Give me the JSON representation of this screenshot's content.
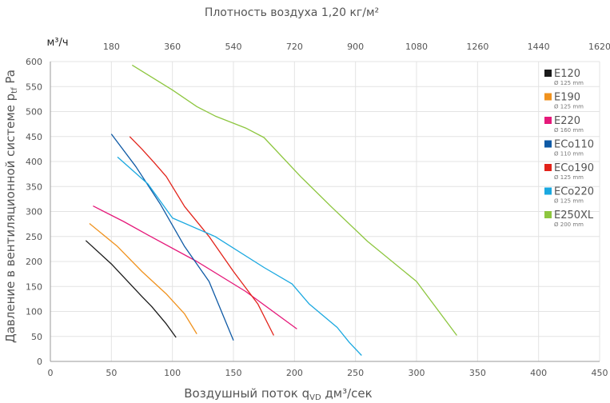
{
  "chart_data": {
    "type": "line",
    "top_title": "Плотность воздуха 1,20 кг/м²",
    "xlabel": "Воздушный поток q",
    "xlabel_sub": "VD",
    "xlabel_unit": " дм³/сек",
    "ylabel": "Давление в вентиляционной системе p",
    "ylabel_sub": "tf",
    "ylabel_unit": " Pa",
    "secondary_x_unit": "м³/ч",
    "xlim": [
      0,
      450
    ],
    "ylim": [
      0,
      600
    ],
    "x_ticks": [
      "0",
      "50",
      "100",
      "150",
      "200",
      "250",
      "300",
      "350",
      "400",
      "450"
    ],
    "y_ticks": [
      "0",
      "50",
      "100",
      "150",
      "200",
      "250",
      "300",
      "350",
      "400",
      "450",
      "500",
      "550",
      "600"
    ],
    "secondary_x_ticks": [
      "180",
      "360",
      "540",
      "720",
      "900",
      "1080",
      "1260",
      "1440",
      "1620"
    ],
    "grid": true,
    "legend_position": "right",
    "series": [
      {
        "name": "E120",
        "sub": "Ø 125 mm",
        "color": "#1a1a1a",
        "points": [
          [
            29,
            242
          ],
          [
            50,
            195
          ],
          [
            75,
            130
          ],
          [
            83,
            110
          ],
          [
            95,
            75
          ],
          [
            103,
            48
          ]
        ]
      },
      {
        "name": "E190",
        "sub": "Ø 125 mm",
        "color": "#f0921e",
        "points": [
          [
            32,
            276
          ],
          [
            55,
            230
          ],
          [
            75,
            180
          ],
          [
            95,
            135
          ],
          [
            110,
            95
          ],
          [
            120,
            55
          ]
        ]
      },
      {
        "name": "E220",
        "sub": "Ø 160 mm",
        "color": "#e5197a",
        "points": [
          [
            35,
            311
          ],
          [
            60,
            280
          ],
          [
            80,
            253
          ],
          [
            120,
            200
          ],
          [
            160,
            140
          ],
          [
            202,
            65
          ]
        ]
      },
      {
        "name": "ECo110",
        "sub": "Ø 110 mm",
        "color": "#0f5aa5",
        "points": [
          [
            50,
            455
          ],
          [
            70,
            390
          ],
          [
            90,
            315
          ],
          [
            110,
            230
          ],
          [
            130,
            160
          ],
          [
            150,
            42
          ]
        ]
      },
      {
        "name": "ECo190",
        "sub": "Ø 125 mm",
        "color": "#e2231a",
        "points": [
          [
            65,
            450
          ],
          [
            75,
            425
          ],
          [
            85,
            398
          ],
          [
            95,
            370
          ],
          [
            110,
            310
          ],
          [
            130,
            250
          ],
          [
            150,
            180
          ],
          [
            170,
            115
          ],
          [
            183,
            52
          ]
        ]
      },
      {
        "name": "ECo220",
        "sub": "Ø 125 mm",
        "color": "#1aa8e0",
        "points": [
          [
            55,
            409
          ],
          [
            80,
            355
          ],
          [
            100,
            287
          ],
          [
            135,
            250
          ],
          [
            175,
            188
          ],
          [
            198,
            155
          ],
          [
            212,
            115
          ],
          [
            235,
            68
          ],
          [
            245,
            38
          ],
          [
            255,
            12
          ]
        ]
      },
      {
        "name": "E250XL",
        "sub": "Ø 200 mm",
        "color": "#8dc63f",
        "points": [
          [
            67,
            593
          ],
          [
            100,
            543
          ],
          [
            120,
            510
          ],
          [
            135,
            491
          ],
          [
            160,
            467
          ],
          [
            175,
            448
          ],
          [
            205,
            370
          ],
          [
            230,
            310
          ],
          [
            260,
            240
          ],
          [
            300,
            160
          ],
          [
            333,
            52
          ]
        ]
      }
    ]
  }
}
